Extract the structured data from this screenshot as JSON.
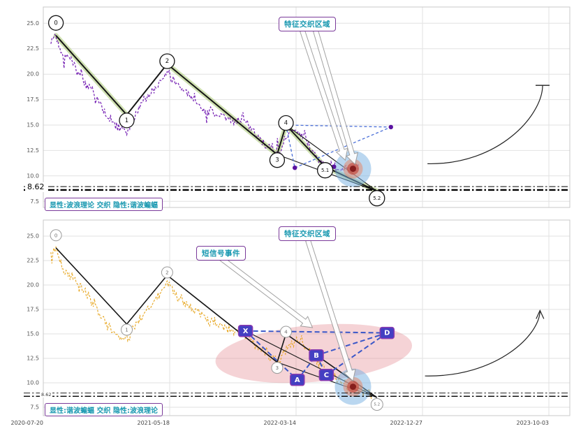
{
  "chart_data": [
    {
      "id": "upper-panel",
      "type": "line",
      "footer_label": "显性:波浪理论 交织 隐性:谐波蝙蝠",
      "x_range": [
        0,
        4.166
      ],
      "x_tick_positions": [
        0,
        1,
        2,
        3,
        4
      ],
      "y_range": [
        6.9,
        26.6
      ],
      "y_ticks": [
        25.0,
        22.5,
        20.0,
        17.5,
        15.0,
        12.5,
        10.0,
        7.5
      ],
      "y_tick_labels": [
        "25.0",
        "22.5",
        "20.0",
        "17.5",
        "15.0",
        "12.5",
        "10.0",
        "7.5"
      ],
      "price_color": "#6a0fae",
      "price_anchors": [
        [
          0.06,
          23.2
        ],
        [
          0.1,
          23.8
        ],
        [
          0.15,
          21.6
        ],
        [
          0.2,
          21.9
        ],
        [
          0.26,
          20.2
        ],
        [
          0.32,
          19.2
        ],
        [
          0.38,
          18.6
        ],
        [
          0.44,
          17.3
        ],
        [
          0.5,
          15.9
        ],
        [
          0.56,
          15.1
        ],
        [
          0.62,
          14.6
        ],
        [
          0.66,
          14.2
        ],
        [
          0.71,
          15.4
        ],
        [
          0.78,
          17.4
        ],
        [
          0.85,
          18.2
        ],
        [
          0.92,
          19.0
        ],
        [
          0.98,
          20.2
        ],
        [
          1.03,
          19.3
        ],
        [
          1.1,
          18.4
        ],
        [
          1.18,
          17.7
        ],
        [
          1.26,
          16.6
        ],
        [
          1.34,
          16.1
        ],
        [
          1.42,
          15.8
        ],
        [
          1.5,
          15.2
        ],
        [
          1.58,
          15.9
        ],
        [
          1.66,
          14.3
        ],
        [
          1.74,
          13.2
        ],
        [
          1.81,
          12.6
        ],
        [
          1.86,
          12.3
        ],
        [
          1.92,
          13.7
        ],
        [
          1.99,
          14.7
        ],
        [
          2.06,
          13.8
        ],
        [
          2.13,
          12.4
        ],
        [
          2.2,
          11.4
        ],
        [
          2.28,
          10.9
        ],
        [
          2.36,
          10.5
        ],
        [
          2.44,
          10.9
        ],
        [
          2.5,
          10.6
        ]
      ],
      "wave_points": [
        {
          "label": "0",
          "x": 0.1,
          "y": 23.8,
          "dy": -18
        },
        {
          "label": "1",
          "x": 0.66,
          "y": 16.0,
          "dy": 8
        },
        {
          "label": "2",
          "x": 0.98,
          "y": 21.0,
          "dy": -4
        },
        {
          "label": "3",
          "x": 1.85,
          "y": 12.1,
          "dy": 8
        },
        {
          "label": "4",
          "x": 1.92,
          "y": 15.0,
          "dy": -3
        },
        {
          "label": "5.1",
          "x": 2.23,
          "y": 10.9,
          "dy": 5
        },
        {
          "label": "5.2",
          "x": 2.64,
          "y": 8.5,
          "dy": 10
        }
      ],
      "highlight_segments": [
        [
          0,
          1
        ],
        [
          2,
          3
        ],
        [
          3,
          4
        ],
        [
          4,
          5
        ],
        [
          5,
          6
        ]
      ],
      "highlight_color": "rgba(160,195,100,0.5)",
      "trend_lines": [
        [
          [
            1.85,
            12.1
          ],
          [
            2.64,
            8.5
          ]
        ],
        [
          [
            1.92,
            15.0
          ],
          [
            2.64,
            8.5
          ]
        ]
      ],
      "implicit_dashed": [
        [
          [
            1.92,
            15.0
          ],
          [
            2.75,
            14.8
          ]
        ],
        [
          [
            1.99,
            10.8
          ],
          [
            2.75,
            14.8
          ]
        ],
        [
          [
            1.92,
            15.0
          ],
          [
            1.99,
            10.8
          ]
        ]
      ],
      "implicit_dash_color": "#4a6fd8",
      "dots": [
        [
          1.99,
          10.8
        ],
        [
          2.75,
          14.8
        ],
        [
          2.3,
          10.9
        ]
      ],
      "dot_color": "#5a12a0",
      "hotspot": {
        "x": 2.45,
        "y": 10.7
      },
      "level_lines": [
        {
          "value": 8.62,
          "label": "8.62"
        },
        {
          "value": 8.95,
          "label": ""
        }
      ],
      "annotations": [
        {
          "text": "特征交织区域",
          "target": [
            2.45,
            11.0
          ]
        }
      ],
      "curve_arrow": {
        "from": [
          3.04,
          11.2
        ],
        "to": [
          3.95,
          18.9
        ],
        "end": "bar"
      }
    },
    {
      "id": "lower-panel",
      "type": "line",
      "footer_label": "显性:谐波蝙蝠 交织 隐性:波浪理论",
      "x_range": [
        0,
        4.166
      ],
      "x_tick_positions": [
        0,
        1,
        2,
        3,
        4
      ],
      "x_tick_labels": [
        "2020-07-20",
        "2021-05-18",
        "2022-03-14",
        "2022-12-27",
        "2023-10-03"
      ],
      "y_range": [
        6.64,
        26.64
      ],
      "y_ticks": [
        25.0,
        22.5,
        20.0,
        17.5,
        15.0,
        12.5,
        10.0,
        7.5
      ],
      "y_tick_labels": [
        "25.0",
        "22.5",
        "20.0",
        "17.5",
        "15.0",
        "12.5",
        "10.0",
        "7.5"
      ],
      "price_color": "#e6a216",
      "price_anchors": [
        [
          0.06,
          23.3
        ],
        [
          0.1,
          23.8
        ],
        [
          0.16,
          21.4
        ],
        [
          0.22,
          21.0
        ],
        [
          0.28,
          19.8
        ],
        [
          0.35,
          19.0
        ],
        [
          0.42,
          17.7
        ],
        [
          0.49,
          16.2
        ],
        [
          0.56,
          15.2
        ],
        [
          0.62,
          14.7
        ],
        [
          0.66,
          14.4
        ],
        [
          0.72,
          15.6
        ],
        [
          0.8,
          17.2
        ],
        [
          0.88,
          18.3
        ],
        [
          0.98,
          20.3
        ],
        [
          1.04,
          19.1
        ],
        [
          1.12,
          18.2
        ],
        [
          1.22,
          17.3
        ],
        [
          1.32,
          16.3
        ],
        [
          1.42,
          15.8
        ],
        [
          1.52,
          15.3
        ],
        [
          1.62,
          14.6
        ],
        [
          1.72,
          13.4
        ],
        [
          1.8,
          12.7
        ],
        [
          1.86,
          12.2
        ],
        [
          1.93,
          13.5
        ],
        [
          2.0,
          14.4
        ],
        [
          2.08,
          13.4
        ],
        [
          2.16,
          12.3
        ],
        [
          2.24,
          11.2
        ],
        [
          2.32,
          10.4
        ],
        [
          2.42,
          9.7
        ],
        [
          2.52,
          9.1
        ],
        [
          2.6,
          8.7
        ]
      ],
      "wave_points": [
        {
          "label": "0",
          "x": 0.1,
          "y": 23.8,
          "dy": -18
        },
        {
          "label": "1",
          "x": 0.66,
          "y": 16.0,
          "dy": 8
        },
        {
          "label": "2",
          "x": 0.98,
          "y": 21.0,
          "dy": -4
        },
        {
          "label": "3",
          "x": 1.85,
          "y": 12.1,
          "dy": 8
        },
        {
          "label": "4",
          "x": 1.92,
          "y": 15.0,
          "dy": -3
        },
        {
          "label": "5.2",
          "x": 2.64,
          "y": 8.5,
          "dy": 10
        }
      ],
      "highlight_segments": [],
      "highlight_color": "rgba(160,195,100,0.3)",
      "trend_lines": [
        [
          [
            1.85,
            12.1
          ],
          [
            2.64,
            8.5
          ]
        ],
        [
          [
            1.6,
            15.3
          ],
          [
            2.64,
            8.5
          ]
        ]
      ],
      "harmonic_points": [
        {
          "label": "X",
          "x": 1.6,
          "y": 15.3
        },
        {
          "label": "A",
          "x": 2.01,
          "y": 10.3
        },
        {
          "label": "B",
          "x": 2.16,
          "y": 12.8
        },
        {
          "label": "C",
          "x": 2.24,
          "y": 10.8
        },
        {
          "label": "D",
          "x": 2.72,
          "y": 15.1
        }
      ],
      "harmonic_segments": [
        [
          "X",
          "A"
        ],
        [
          "A",
          "B"
        ],
        [
          "B",
          "C"
        ],
        [
          "C",
          "D"
        ],
        [
          "X",
          "D"
        ],
        [
          "B",
          "D"
        ]
      ],
      "harmonic_color": "#3a57c8",
      "harmonic_box_fill": "#443fc2",
      "red_zone": {
        "cx": 2.14,
        "cy": 13.0,
        "rx": 0.78,
        "ry": 2.9,
        "rot": -5
      },
      "hotspot": {
        "x": 2.45,
        "y": 9.6
      },
      "level_lines": [
        {
          "value": 8.62,
          "label": "8.62"
        },
        {
          "value": 8.95,
          "label": ""
        }
      ],
      "annotations": [
        {
          "text": "特征交织区域",
          "target": [
            2.45,
            9.9
          ]
        },
        {
          "text": "短信号事件",
          "target": [
            2.13,
            15.5
          ]
        }
      ],
      "curve_arrow": {
        "from": [
          3.02,
          10.7
        ],
        "to": [
          3.93,
          17.4
        ],
        "end": "arrow"
      }
    }
  ]
}
